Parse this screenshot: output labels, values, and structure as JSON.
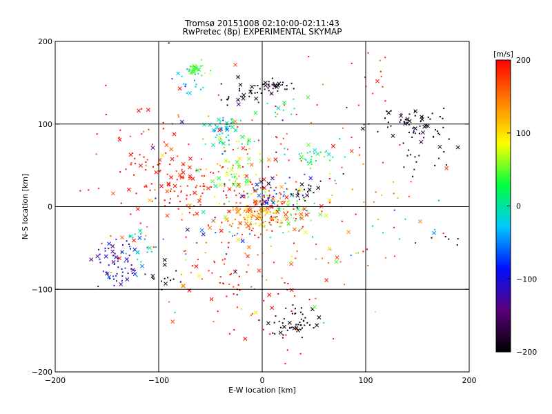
{
  "title": "Tromsø 20151008 02:10:00-02:11:43",
  "subtitle": "RwPretec (8p) EXPERIMENTAL SKYMAP",
  "chart_data": {
    "type": "scatter",
    "title": "Tromsø 20151008 02:10:00-02:11:43",
    "subtitle": "RwPretec (8p) EXPERIMENTAL SKYMAP",
    "xlabel": "E-W location [km]",
    "ylabel": "N-S location [km]",
    "xlim": [
      -200,
      200
    ],
    "ylim": [
      -200,
      200
    ],
    "x_ticks": [
      -200,
      -100,
      0,
      100,
      200
    ],
    "y_ticks": [
      -200,
      -100,
      0,
      100,
      200
    ],
    "grid": true,
    "colorbar": {
      "label": "[m/s]",
      "range": [
        -200,
        200
      ],
      "ticks": [
        200,
        100,
        0,
        -100,
        -200
      ],
      "colors": [
        "#000000",
        "#5a007a",
        "#0010ff",
        "#00c8ff",
        "#00ff40",
        "#ffff00",
        "#ff8000",
        "#ff0000"
      ]
    },
    "markers": [
      "dot",
      "x"
    ],
    "clusters": [
      {
        "x": -68,
        "y": 166,
        "sx": 4,
        "sy": 4,
        "n": 30,
        "v": 30
      },
      {
        "x": -72,
        "y": 145,
        "sx": 8,
        "sy": 5,
        "n": 12,
        "v": -30
      },
      {
        "x": -50,
        "y": 168,
        "sx": 8,
        "sy": 6,
        "n": 6,
        "v": 60
      },
      {
        "x": -38,
        "y": 98,
        "sx": 8,
        "sy": 7,
        "n": 40,
        "v": -10
      },
      {
        "x": -40,
        "y": 78,
        "sx": 5,
        "sy": 4,
        "n": 10,
        "v": 10
      },
      {
        "x": -18,
        "y": 80,
        "sx": 6,
        "sy": 4,
        "n": 12,
        "v": 30
      },
      {
        "x": -22,
        "y": 35,
        "sx": 14,
        "sy": 14,
        "n": 60,
        "v": 60
      },
      {
        "x": -70,
        "y": 25,
        "sx": 18,
        "sy": 16,
        "n": 60,
        "v": 195
      },
      {
        "x": -110,
        "y": 45,
        "sx": 25,
        "sy": 40,
        "n": 70,
        "v": 195
      },
      {
        "x": 5,
        "y": 0,
        "sx": 18,
        "sy": 14,
        "n": 120,
        "v": 180
      },
      {
        "x": -10,
        "y": -15,
        "sx": 16,
        "sy": 10,
        "n": 60,
        "v": 110
      },
      {
        "x": 30,
        "y": -8,
        "sx": 14,
        "sy": 12,
        "n": 40,
        "v": 55
      },
      {
        "x": 5,
        "y": 15,
        "sx": 12,
        "sy": 10,
        "n": 30,
        "v": -70
      },
      {
        "x": 40,
        "y": 20,
        "sx": 8,
        "sy": 7,
        "n": 20,
        "v": -180
      },
      {
        "x": 50,
        "y": 60,
        "sx": 10,
        "sy": 6,
        "n": 30,
        "v": 20
      },
      {
        "x": 10,
        "y": 145,
        "sx": 10,
        "sy": 6,
        "n": 40,
        "v": -190
      },
      {
        "x": -25,
        "y": 135,
        "sx": 10,
        "sy": 6,
        "n": 20,
        "v": -190
      },
      {
        "x": 20,
        "y": 120,
        "sx": 12,
        "sy": 8,
        "n": 10,
        "v": 25
      },
      {
        "x": 138,
        "y": 100,
        "sx": 20,
        "sy": 10,
        "n": 40,
        "v": -190
      },
      {
        "x": 160,
        "y": 80,
        "sx": 20,
        "sy": 16,
        "n": 40,
        "v": -185
      },
      {
        "x": -140,
        "y": -70,
        "sx": 10,
        "sy": 14,
        "n": 60,
        "v": -110
      },
      {
        "x": -118,
        "y": -45,
        "sx": 10,
        "sy": 12,
        "n": 25,
        "v": -20
      },
      {
        "x": -95,
        "y": -85,
        "sx": 8,
        "sy": 8,
        "n": 15,
        "v": -190
      },
      {
        "x": 32,
        "y": -140,
        "sx": 12,
        "sy": 9,
        "n": 50,
        "v": -195
      },
      {
        "x": -40,
        "y": -75,
        "sx": 25,
        "sy": 25,
        "n": 40,
        "v": 190
      },
      {
        "x": 0,
        "y": -120,
        "sx": 30,
        "sy": 35,
        "n": 25,
        "v": 195
      },
      {
        "x": 110,
        "y": 160,
        "sx": 10,
        "sy": 25,
        "n": 12,
        "v": 195
      },
      {
        "x": 150,
        "y": -30,
        "sx": 30,
        "sy": 15,
        "n": 10,
        "v": -40
      },
      {
        "x": 180,
        "y": -40,
        "sx": 8,
        "sy": 5,
        "n": 5,
        "v": -195
      }
    ]
  }
}
